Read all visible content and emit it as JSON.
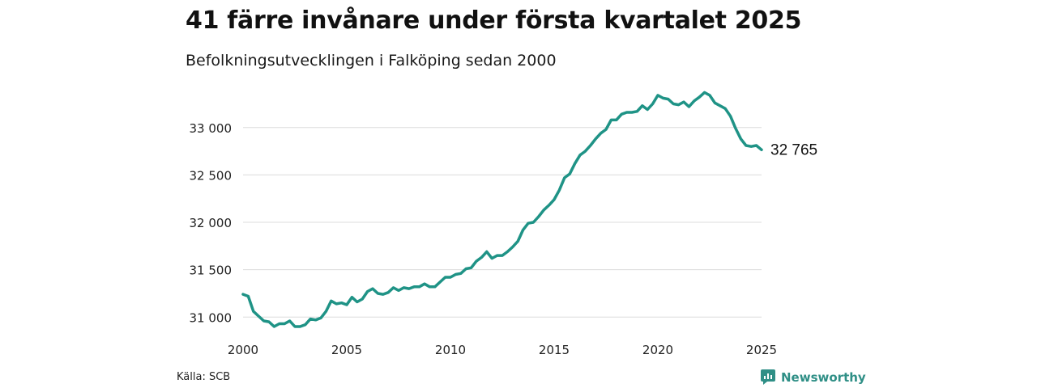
{
  "header": {
    "title": "41 färre invånare under första kvartalet 2025",
    "subtitle": "Befolkningsutvecklingen i Falköping sedan 2000"
  },
  "footer": {
    "source": "Källa: SCB",
    "brand": "Newsworthy",
    "brand_icon": "newsworthy-logo-icon",
    "brand_color": "#2f8f86"
  },
  "chart_data": {
    "type": "line",
    "title": "41 färre invånare under första kvartalet 2025",
    "subtitle": "Befolkningsutvecklingen i Falköping sedan 2000",
    "xlabel": "",
    "ylabel": "",
    "xlim": [
      2000,
      2025
    ],
    "ylim": [
      30900,
      33450
    ],
    "x_ticks": [
      2000,
      2005,
      2010,
      2015,
      2020,
      2025
    ],
    "y_ticks": [
      31000,
      31500,
      32000,
      32500,
      33000
    ],
    "y_tick_labels": [
      "31 000",
      "31 500",
      "32 000",
      "32 500",
      "33 000"
    ],
    "grid": "horizontal",
    "line_color": "#1f9386",
    "end_label": "32 765",
    "series": [
      {
        "x": [
          2000.0,
          2000.25,
          2000.5,
          2000.75,
          2001.0,
          2001.25,
          2001.5,
          2001.75,
          2002.0,
          2002.25,
          2002.5,
          2002.75,
          2003.0,
          2003.25,
          2003.5,
          2003.75,
          2004.0,
          2004.25,
          2004.5,
          2004.75,
          2005.0,
          2005.25,
          2005.5,
          2005.75,
          2006.0,
          2006.25,
          2006.5,
          2006.75,
          2007.0,
          2007.25,
          2007.5,
          2007.75,
          2008.0,
          2008.25,
          2008.5,
          2008.75,
          2009.0,
          2009.25,
          2009.5,
          2009.75,
          2010.0,
          2010.25,
          2010.5,
          2010.75,
          2011.0,
          2011.25,
          2011.5,
          2011.75,
          2012.0,
          2012.25,
          2012.5,
          2012.75,
          2013.0,
          2013.25,
          2013.5,
          2013.75,
          2014.0,
          2014.25,
          2014.5,
          2014.75,
          2015.0,
          2015.25,
          2015.5,
          2015.75,
          2016.0,
          2016.25,
          2016.5,
          2016.75,
          2017.0,
          2017.25,
          2017.5,
          2017.75,
          2018.0,
          2018.25,
          2018.5,
          2018.75,
          2019.0,
          2019.25,
          2019.5,
          2019.75,
          2020.0,
          2020.25,
          2020.5,
          2020.75,
          2021.0,
          2021.25,
          2021.5,
          2021.75,
          2022.0,
          2022.25,
          2022.5,
          2022.75,
          2023.0,
          2023.25,
          2023.5,
          2023.75,
          2024.0,
          2024.25,
          2024.5,
          2024.75,
          2025.0
        ],
        "values": [
          31240,
          31220,
          31060,
          31010,
          30960,
          30950,
          30900,
          30930,
          30930,
          30960,
          30900,
          30900,
          30920,
          30980,
          30970,
          30990,
          31060,
          31170,
          31140,
          31150,
          31130,
          31210,
          31160,
          31190,
          31270,
          31300,
          31250,
          31240,
          31260,
          31310,
          31280,
          31310,
          31300,
          31320,
          31320,
          31350,
          31320,
          31320,
          31370,
          31420,
          31420,
          31450,
          31460,
          31510,
          31520,
          31590,
          31630,
          31690,
          31620,
          31650,
          31650,
          31690,
          31740,
          31800,
          31920,
          31990,
          32000,
          32060,
          32130,
          32180,
          32240,
          32340,
          32470,
          32510,
          32620,
          32710,
          32750,
          32810,
          32880,
          32940,
          32980,
          33080,
          33080,
          33140,
          33160,
          33160,
          33170,
          33230,
          33190,
          33250,
          33340,
          33310,
          33300,
          33250,
          33240,
          33270,
          33220,
          33280,
          33320,
          33370,
          33340,
          33260,
          33230,
          33200,
          33120,
          32990,
          32880,
          32810,
          32800,
          32810,
          32765
        ]
      }
    ]
  }
}
